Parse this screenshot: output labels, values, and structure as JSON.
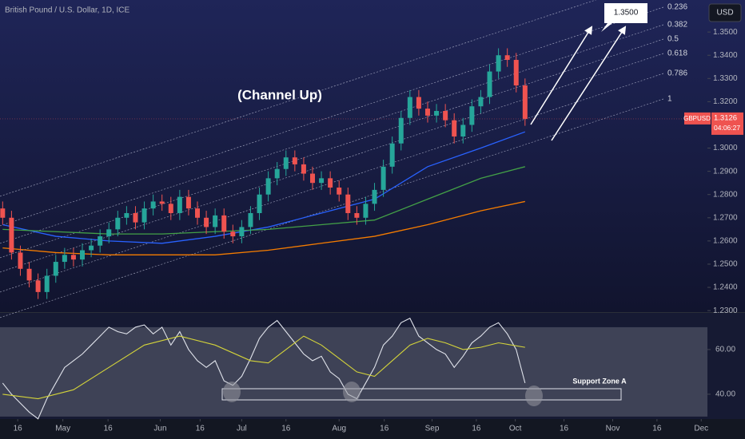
{
  "chart_data": [
    {
      "type": "candlestick",
      "title": "British Pound / U.S. Dollar, 1D, ICE",
      "currency": "USD",
      "annotation": "(Channel Up)",
      "target_label": "1.3500",
      "fib_levels": [
        "0.236",
        "0.382",
        "0.5",
        "0.618",
        "0.786",
        "1"
      ],
      "last_price": {
        "symbol": "GBPUSD",
        "price": "1.3126",
        "countdown": "04:06:27"
      },
      "up_color": "#26a69a",
      "down_color": "#ef5350",
      "open": [
        1.274,
        1.27,
        1.255,
        1.248,
        1.243,
        1.238,
        1.245,
        1.251,
        1.254,
        1.252,
        1.256,
        1.258,
        1.262,
        1.265,
        1.27,
        1.272,
        1.268,
        1.274,
        1.277,
        1.276,
        1.272,
        1.279,
        1.274,
        1.27,
        1.266,
        1.271,
        1.264,
        1.262,
        1.266,
        1.272,
        1.28,
        1.287,
        1.291,
        1.296,
        1.293,
        1.289,
        1.285,
        1.287,
        1.283,
        1.28,
        1.272,
        1.27,
        1.276,
        1.282,
        1.292,
        1.302,
        1.313,
        1.322,
        1.317,
        1.314,
        1.316,
        1.312,
        1.305,
        1.31,
        1.318,
        1.322,
        1.333,
        1.34,
        1.338,
        1.327
      ],
      "high": [
        1.277,
        1.273,
        1.258,
        1.251,
        1.246,
        1.248,
        1.254,
        1.257,
        1.257,
        1.259,
        1.261,
        1.265,
        1.268,
        1.273,
        1.275,
        1.275,
        1.277,
        1.28,
        1.28,
        1.279,
        1.282,
        1.282,
        1.277,
        1.273,
        1.274,
        1.274,
        1.267,
        1.269,
        1.275,
        1.283,
        1.29,
        1.294,
        1.299,
        1.299,
        1.296,
        1.292,
        1.29,
        1.29,
        1.286,
        1.283,
        1.275,
        1.279,
        1.285,
        1.295,
        1.305,
        1.316,
        1.325,
        1.325,
        1.32,
        1.319,
        1.319,
        1.315,
        1.313,
        1.321,
        1.325,
        1.336,
        1.343,
        1.343,
        1.341,
        1.33
      ],
      "low": [
        1.267,
        1.252,
        1.245,
        1.24,
        1.235,
        1.235,
        1.242,
        1.248,
        1.249,
        1.249,
        1.253,
        1.255,
        1.259,
        1.262,
        1.267,
        1.265,
        1.265,
        1.271,
        1.273,
        1.269,
        1.269,
        1.271,
        1.267,
        1.263,
        1.263,
        1.261,
        1.259,
        1.259,
        1.263,
        1.269,
        1.277,
        1.284,
        1.288,
        1.29,
        1.286,
        1.282,
        1.282,
        1.28,
        1.277,
        1.269,
        1.267,
        1.267,
        1.273,
        1.279,
        1.289,
        1.299,
        1.31,
        1.314,
        1.311,
        1.311,
        1.309,
        1.302,
        1.302,
        1.307,
        1.315,
        1.319,
        1.33,
        1.335,
        1.324,
        1.3096
      ],
      "close": [
        1.27,
        1.255,
        1.248,
        1.243,
        1.238,
        1.245,
        1.251,
        1.254,
        1.252,
        1.256,
        1.258,
        1.262,
        1.265,
        1.27,
        1.272,
        1.268,
        1.274,
        1.277,
        1.276,
        1.272,
        1.279,
        1.274,
        1.27,
        1.266,
        1.271,
        1.264,
        1.262,
        1.266,
        1.272,
        1.28,
        1.287,
        1.291,
        1.296,
        1.293,
        1.289,
        1.285,
        1.287,
        1.283,
        1.28,
        1.272,
        1.27,
        1.276,
        1.282,
        1.292,
        1.302,
        1.313,
        1.322,
        1.317,
        1.314,
        1.316,
        1.312,
        1.305,
        1.31,
        1.318,
        1.322,
        1.333,
        1.34,
        1.338,
        1.327,
        1.3126
      ],
      "series": [
        {
          "color": "#2962ff",
          "x": [
            0,
            6,
            12,
            18,
            24,
            30,
            36,
            42,
            48,
            54,
            59
          ],
          "values": [
            1.267,
            1.262,
            1.26,
            1.259,
            1.262,
            1.266,
            1.272,
            1.278,
            1.292,
            1.3,
            1.307
          ]
        },
        {
          "color": "#43a047",
          "x": [
            0,
            6,
            12,
            18,
            24,
            30,
            36,
            42,
            48,
            54,
            59
          ],
          "values": [
            1.265,
            1.264,
            1.263,
            1.263,
            1.264,
            1.265,
            1.267,
            1.269,
            1.278,
            1.287,
            1.292
          ]
        },
        {
          "color": "#f57c00",
          "x": [
            0,
            6,
            12,
            18,
            24,
            30,
            36,
            42,
            48,
            54,
            59
          ],
          "values": [
            1.257,
            1.255,
            1.254,
            1.254,
            1.254,
            1.256,
            1.259,
            1.262,
            1.267,
            1.273,
            1.277
          ]
        }
      ],
      "xlim": [
        -0.3,
        79.6
      ],
      "xticks": [
        {
          "value": 1.7,
          "label": "16"
        },
        {
          "value": 6.8,
          "label": "May"
        },
        {
          "value": 11.9,
          "label": "16"
        },
        {
          "value": 17.8,
          "label": "Jun"
        },
        {
          "value": 22.3,
          "label": "16"
        },
        {
          "value": 27.0,
          "label": "Jul"
        },
        {
          "value": 32.0,
          "label": "16"
        },
        {
          "value": 38.0,
          "label": "Aug"
        },
        {
          "value": 43.1,
          "label": "16"
        },
        {
          "value": 48.5,
          "label": "Sep"
        },
        {
          "value": 53.5,
          "label": "16"
        },
        {
          "value": 57.9,
          "label": "Oct"
        },
        {
          "value": 63.4,
          "label": "16"
        },
        {
          "value": 68.9,
          "label": "Nov"
        },
        {
          "value": 73.9,
          "label": "16"
        },
        {
          "value": 78.9,
          "label": "Dec"
        }
      ],
      "ylim": [
        1.2297,
        1.3638
      ],
      "yticks": [
        {
          "value": 1.35,
          "label": "1.3500"
        },
        {
          "value": 1.34,
          "label": "1.3400"
        },
        {
          "value": 1.33,
          "label": "1.3300"
        },
        {
          "value": 1.32,
          "label": "1.3200"
        },
        {
          "value": 1.3,
          "label": "1.3000"
        },
        {
          "value": 1.29,
          "label": "1.2900"
        },
        {
          "value": 1.28,
          "label": "1.2800"
        },
        {
          "value": 1.27,
          "label": "1.2700"
        },
        {
          "value": 1.26,
          "label": "1.2600"
        },
        {
          "value": 1.25,
          "label": "1.2500"
        },
        {
          "value": 1.24,
          "label": "1.2400"
        },
        {
          "value": 1.23,
          "label": "1.2300"
        }
      ]
    },
    {
      "type": "line",
      "annotation": "Support Zone A",
      "band": [
        30,
        70
      ],
      "series": [
        {
          "color": "#e0e3eb",
          "x": [
            0,
            1,
            2,
            3,
            4,
            5,
            6,
            7,
            8,
            9,
            10,
            11,
            12,
            13,
            14,
            15,
            16,
            17,
            18,
            19,
            20,
            21,
            22,
            23,
            24,
            25,
            26,
            27,
            28,
            29,
            30,
            31,
            32,
            33,
            34,
            35,
            36,
            37,
            38,
            39,
            40,
            41,
            42,
            43,
            44,
            45,
            46,
            47,
            48,
            49,
            50,
            51,
            52,
            53,
            54,
            55,
            56,
            57,
            58,
            59
          ],
          "values": [
            45,
            40,
            36,
            32,
            29,
            38,
            45,
            52,
            55,
            58,
            62,
            66,
            70,
            68,
            67,
            70,
            71,
            67,
            70,
            62,
            68,
            60,
            55,
            52,
            55,
            46,
            44,
            48,
            56,
            65,
            70,
            73,
            68,
            63,
            58,
            55,
            57,
            50,
            47,
            40,
            38,
            45,
            52,
            62,
            66,
            72,
            74,
            66,
            63,
            60,
            58,
            52,
            57,
            63,
            66,
            70,
            72,
            67,
            60,
            45
          ]
        },
        {
          "color": "#d4d43a",
          "x": [
            0,
            4,
            8,
            12,
            16,
            20,
            24,
            28,
            30,
            32,
            34,
            36,
            38,
            40,
            42,
            44,
            46,
            48,
            50,
            52,
            54,
            56,
            59
          ],
          "values": [
            40,
            38,
            42,
            52,
            62,
            66,
            62,
            55,
            54,
            60,
            66,
            62,
            56,
            50,
            48,
            55,
            62,
            65,
            63,
            60,
            61,
            63,
            61
          ]
        }
      ],
      "ylim": [
        28.9,
        76.4
      ],
      "yticks": [
        {
          "value": 60,
          "label": "60.00"
        },
        {
          "value": 40,
          "label": "40.00"
        }
      ]
    }
  ]
}
